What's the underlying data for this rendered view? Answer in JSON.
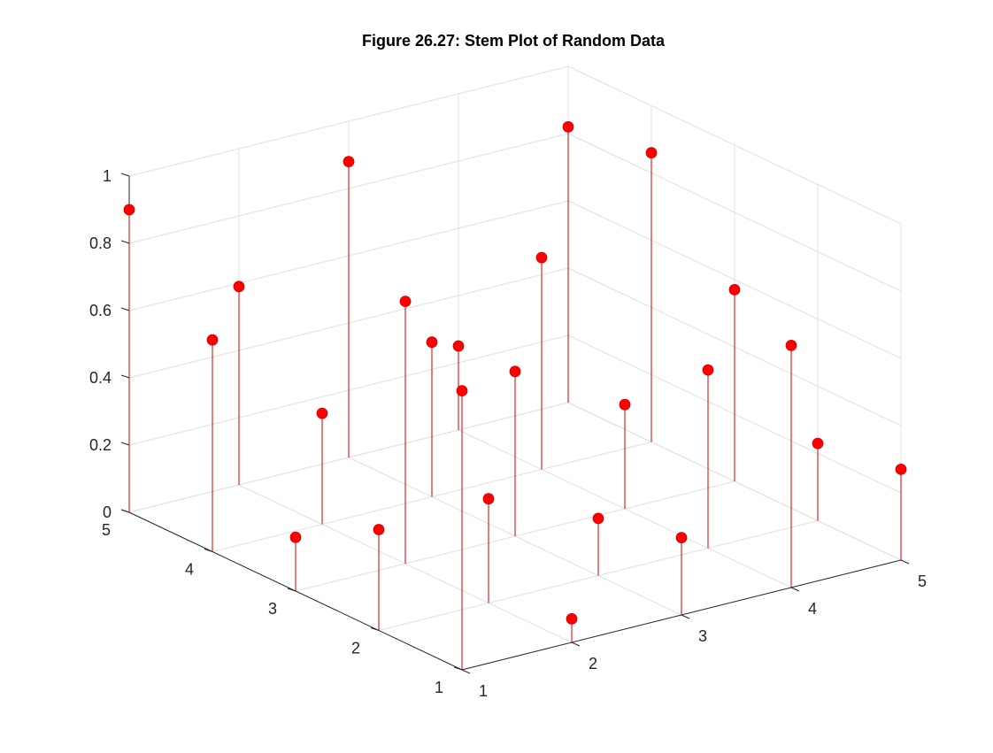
{
  "chart_data": {
    "type": "stem3",
    "title": "Figure 26.27: Stem Plot of Random Data",
    "xlabel": "",
    "ylabel": "",
    "zlabel": "",
    "grid": true,
    "xlim": [
      1,
      5
    ],
    "ylim": [
      1,
      5
    ],
    "zlim": [
      0,
      1
    ],
    "x_ticks": [
      "1",
      "2",
      "3",
      "4",
      "5"
    ],
    "y_ticks": [
      "1",
      "2",
      "3",
      "4",
      "5"
    ],
    "z_ticks": [
      "0",
      "0.2",
      "0.4",
      "0.6",
      "0.8",
      "1"
    ],
    "colors": {
      "stem": "#cc0000",
      "marker": "#ff0000",
      "grid": "#e0e0e0",
      "axis": "#262626"
    },
    "points": [
      {
        "x": 1,
        "y": 1,
        "z": 0.83
      },
      {
        "x": 1,
        "y": 2,
        "z": 0.3
      },
      {
        "x": 1,
        "y": 3,
        "z": 0.16
      },
      {
        "x": 1,
        "y": 4,
        "z": 0.63
      },
      {
        "x": 1,
        "y": 5,
        "z": 0.9
      },
      {
        "x": 2,
        "y": 1,
        "z": 0.07
      },
      {
        "x": 2,
        "y": 2,
        "z": 0.31
      },
      {
        "x": 2,
        "y": 3,
        "z": 0.78
      },
      {
        "x": 2,
        "y": 4,
        "z": 0.33
      },
      {
        "x": 2,
        "y": 5,
        "z": 0.59
      },
      {
        "x": 3,
        "y": 1,
        "z": 0.23
      },
      {
        "x": 3,
        "y": 2,
        "z": 0.17
      },
      {
        "x": 3,
        "y": 3,
        "z": 0.49
      },
      {
        "x": 3,
        "y": 4,
        "z": 0.46
      },
      {
        "x": 3,
        "y": 5,
        "z": 0.88
      },
      {
        "x": 4,
        "y": 1,
        "z": 0.72
      },
      {
        "x": 4,
        "y": 2,
        "z": 0.53
      },
      {
        "x": 4,
        "y": 3,
        "z": 0.31
      },
      {
        "x": 4,
        "y": 4,
        "z": 0.63
      },
      {
        "x": 4,
        "y": 5,
        "z": 0.25
      },
      {
        "x": 5,
        "y": 1,
        "z": 0.27
      },
      {
        "x": 5,
        "y": 2,
        "z": 0.23
      },
      {
        "x": 5,
        "y": 3,
        "z": 0.57
      },
      {
        "x": 5,
        "y": 4,
        "z": 0.86
      },
      {
        "x": 5,
        "y": 5,
        "z": 0.82
      }
    ]
  }
}
